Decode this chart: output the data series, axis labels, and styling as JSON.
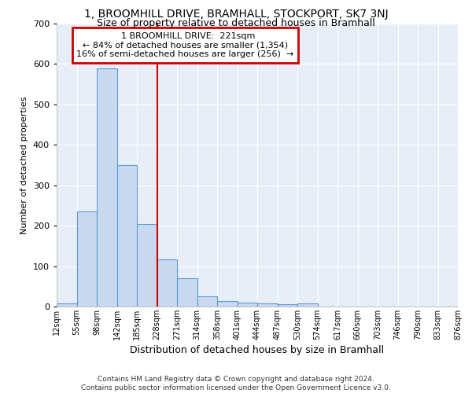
{
  "title1": "1, BROOMHILL DRIVE, BRAMHALL, STOCKPORT, SK7 3NJ",
  "title2": "Size of property relative to detached houses in Bramhall",
  "xlabel": "Distribution of detached houses by size in Bramhall",
  "ylabel": "Number of detached properties",
  "bar_values": [
    8,
    236,
    590,
    350,
    204,
    117,
    70,
    25,
    14,
    10,
    8,
    5,
    8,
    0,
    0,
    0,
    0,
    0,
    0,
    0
  ],
  "bin_labels": [
    "12sqm",
    "55sqm",
    "98sqm",
    "142sqm",
    "185sqm",
    "228sqm",
    "271sqm",
    "314sqm",
    "358sqm",
    "401sqm",
    "444sqm",
    "487sqm",
    "530sqm",
    "574sqm",
    "617sqm",
    "660sqm",
    "703sqm",
    "746sqm",
    "790sqm",
    "833sqm",
    "876sqm"
  ],
  "bar_color": "#c8d9f0",
  "bar_edge_color": "#5b9bd5",
  "bg_color": "#e8eef8",
  "grid_color": "#ffffff",
  "vline_x": 5,
  "vline_color": "#cc0000",
  "annotation_text": "  1 BROOMHILL DRIVE:  221sqm\n← 84% of detached houses are smaller (1,354)\n16% of semi-detached houses are larger (256)  →",
  "annotation_box_color": "#ffffff",
  "annotation_box_edge": "#cc0000",
  "footnote": "Contains HM Land Registry data © Crown copyright and database right 2024.\nContains public sector information licensed under the Open Government Licence v3.0.",
  "ylim": [
    0,
    700
  ],
  "yticks": [
    0,
    100,
    200,
    300,
    400,
    500,
    600,
    700
  ],
  "num_bins": 20
}
